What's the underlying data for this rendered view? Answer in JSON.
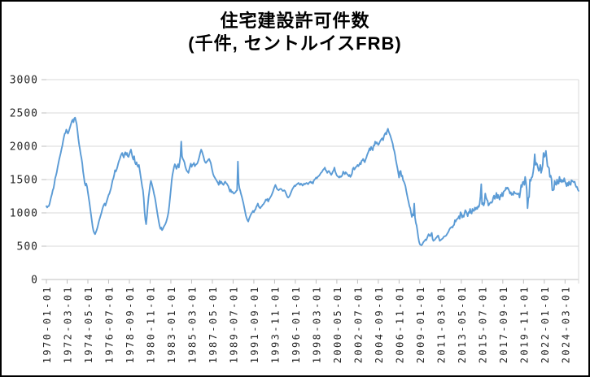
{
  "title": {
    "line1": "住宅建設許可件数",
    "line2": "(千件, セントルイスFRB)"
  },
  "colors": {
    "line": "#5B9BD5",
    "gridline": "#D9D9D9",
    "axis": "#BFBFBF",
    "plot_border": "#D9D9D9",
    "text": "#262626",
    "title_text": "#000000",
    "background": "#FFFFFF",
    "frame_border": "#000000"
  },
  "chart_data": {
    "type": "line",
    "title": "住宅建設許可件数 (千件, セントルイスFRB)",
    "series_name": "住宅建設許可件数",
    "unit": "千件",
    "source": "セントルイスFRB",
    "frequency": "monthly",
    "start": "1970-01",
    "end": "2025-08",
    "xlabel": "",
    "ylabel": "",
    "ylim": [
      0,
      3000
    ],
    "grid": true,
    "legend": false,
    "y_ticks": [
      0,
      500,
      1000,
      1500,
      2000,
      2500,
      3000
    ],
    "x_tick_interval_months": 26,
    "x_tick_labels": [
      "1970-01-01",
      "1972-03-01",
      "1974-05-01",
      "1976-07-01",
      "1978-09-01",
      "1980-11-01",
      "1983-01-01",
      "1985-03-01",
      "1987-05-01",
      "1989-07-01",
      "1991-09-01",
      "1993-11-01",
      "1996-01-01",
      "1998-03-01",
      "2000-05-01",
      "2002-07-01",
      "2004-09-01",
      "2006-11-01",
      "2009-01-01",
      "2011-03-01",
      "2013-05-01",
      "2015-07-01",
      "2017-09-01",
      "2019-11-01",
      "2022-01-01",
      "2024-03-01"
    ],
    "values": [
      1100,
      1081,
      1099,
      1102,
      1135,
      1190,
      1240,
      1282,
      1340,
      1370,
      1440,
      1520,
      1561,
      1610,
      1680,
      1740,
      1800,
      1850,
      1900,
      1960,
      2010,
      2080,
      2140,
      2190,
      2200,
      2250,
      2220,
      2190,
      2220,
      2260,
      2300,
      2340,
      2380,
      2400,
      2360,
      2419,
      2430,
      2380,
      2330,
      2230,
      2120,
      2030,
      1960,
      1880,
      1820,
      1740,
      1620,
      1540,
      1450,
      1410,
      1440,
      1390,
      1310,
      1230,
      1150,
      1060,
      970,
      880,
      790,
      730,
      700,
      680,
      710,
      740,
      780,
      830,
      880,
      920,
      960,
      1000,
      1050,
      1090,
      1120,
      1140,
      1110,
      1150,
      1190,
      1230,
      1270,
      1290,
      1330,
      1370,
      1430,
      1490,
      1520,
      1570,
      1640,
      1620,
      1650,
      1690,
      1740,
      1780,
      1810,
      1850,
      1880,
      1900,
      1860,
      1830,
      1890,
      1910,
      1870,
      1900,
      1850,
      1840,
      1880,
      1920,
      1950,
      1890,
      1830,
      1800,
      1850,
      1760,
      1730,
      1760,
      1710,
      1690,
      1720,
      1640,
      1560,
      1480,
      1400,
      1340,
      1220,
      1030,
      900,
      830,
      950,
      1100,
      1230,
      1320,
      1420,
      1480,
      1440,
      1390,
      1340,
      1280,
      1230,
      1160,
      1080,
      1000,
      930,
      860,
      800,
      760,
      780,
      740,
      760,
      790,
      810,
      830,
      860,
      900,
      950,
      1010,
      1110,
      1230,
      1350,
      1480,
      1570,
      1630,
      1690,
      1730,
      1700,
      1660,
      1700,
      1730,
      1680,
      1760,
      1850,
      2070,
      1850,
      1810,
      1790,
      1760,
      1700,
      1660,
      1630,
      1620,
      1600,
      1650,
      1700,
      1740,
      1690,
      1720,
      1730,
      1750,
      1700,
      1720,
      1730,
      1740,
      1770,
      1810,
      1860,
      1910,
      1950,
      1920,
      1880,
      1840,
      1790,
      1760,
      1750,
      1770,
      1780,
      1800,
      1810,
      1780,
      1750,
      1690,
      1630,
      1580,
      1550,
      1530,
      1510,
      1490,
      1470,
      1450,
      1420,
      1480,
      1440,
      1470,
      1450,
      1430,
      1420,
      1450,
      1470,
      1450,
      1440,
      1420,
      1400,
      1360,
      1320,
      1350,
      1310,
      1320,
      1300,
      1290,
      1300,
      1310,
      1330,
      1340,
      1770,
      1450,
      1370,
      1330,
      1280,
      1240,
      1190,
      1140,
      1080,
      1020,
      960,
      920,
      890,
      870,
      910,
      940,
      970,
      990,
      1010,
      1030,
      1010,
      1040,
      1050,
      1090,
      1110,
      1140,
      1100,
      1080,
      1070,
      1090,
      1100,
      1120,
      1130,
      1150,
      1170,
      1200,
      1190,
      1210,
      1170,
      1200,
      1220,
      1240,
      1260,
      1290,
      1320,
      1360,
      1390,
      1420,
      1390,
      1360,
      1350,
      1340,
      1350,
      1360,
      1360,
      1350,
      1330,
      1330,
      1340,
      1330,
      1300,
      1270,
      1240,
      1230,
      1240,
      1260,
      1290,
      1320,
      1350,
      1370,
      1390,
      1410,
      1400,
      1420,
      1430,
      1440,
      1450,
      1430,
      1420,
      1440,
      1430,
      1410,
      1420,
      1440,
      1430,
      1440,
      1450,
      1440,
      1430,
      1450,
      1460,
      1470,
      1450,
      1460,
      1440,
      1480,
      1500,
      1510,
      1530,
      1520,
      1540,
      1550,
      1560,
      1580,
      1600,
      1610,
      1630,
      1650,
      1660,
      1680,
      1640,
      1630,
      1600,
      1620,
      1630,
      1610,
      1590,
      1570,
      1590,
      1620,
      1640,
      1680,
      1620,
      1590,
      1560,
      1550,
      1540,
      1530,
      1550,
      1540,
      1550,
      1570,
      1620,
      1600,
      1580,
      1610,
      1600,
      1580,
      1570,
      1550,
      1570,
      1540,
      1560,
      1590,
      1660,
      1680,
      1650,
      1670,
      1690,
      1700,
      1720,
      1700,
      1720,
      1750,
      1730,
      1780,
      1790,
      1810,
      1780,
      1760,
      1800,
      1830,
      1870,
      1900,
      1930,
      1970,
      1940,
      1990,
      1960,
      1940,
      2010,
      2010,
      2070,
      2040,
      2060,
      2040,
      2020,
      2040,
      2070,
      2090,
      2110,
      2120,
      2090,
      2150,
      2180,
      2200,
      2180,
      2230,
      2263,
      2220,
      2190,
      2160,
      2120,
      2080,
      2040,
      1970,
      1930,
      1870,
      1790,
      1730,
      1670,
      1600,
      1530,
      1620,
      1630,
      1550,
      1560,
      1490,
      1470,
      1440,
      1400,
      1330,
      1270,
      1210,
      1160,
      1100,
      1070,
      1000,
      940,
      980,
      960,
      1140,
      930,
      850,
      810,
      730,
      640,
      570,
      530,
      520,
      513,
      525,
      550,
      570,
      580,
      600,
      590,
      620,
      650,
      680,
      660,
      650,
      680,
      700,
      610,
      580,
      590,
      600,
      620,
      630,
      650,
      660,
      620,
      580,
      590,
      600,
      610,
      620,
      640,
      650,
      650,
      660,
      680,
      700,
      720,
      750,
      770,
      780,
      790,
      780,
      810,
      820,
      890,
      870,
      900,
      910,
      920,
      950,
      910,
      1010,
      990,
      930,
      960,
      940,
      990,
      1040,
      1020,
      990,
      950,
      1010,
      1000,
      1060,
      1000,
      990,
      1060,
      1030,
      1030,
      1080,
      1050,
      1080,
      1060,
      1100,
      1090,
      1140,
      1250,
      1430,
      1130,
      1150,
      1110,
      1150,
      1290,
      1230,
      1200,
      1180,
      1110,
      1130,
      1150,
      1160,
      1150,
      1170,
      1230,
      1260,
      1210,
      1240,
      1300,
      1220,
      1270,
      1230,
      1200,
      1270,
      1250,
      1300,
      1250,
      1320,
      1330,
      1340,
      1380,
      1360,
      1380,
      1360,
      1330,
      1290,
      1310,
      1270,
      1290,
      1270,
      1320,
      1300,
      1290,
      1290,
      1280,
      1290,
      1290,
      1230,
      1320,
      1420,
      1390,
      1460,
      1470,
      1420,
      1540,
      1460,
      1350,
      1070,
      1220,
      1240,
      1500,
      1480,
      1530,
      1540,
      1610,
      1700,
      1880,
      1720,
      1750,
      1730,
      1680,
      1630,
      1650,
      1720,
      1600,
      1650,
      1720,
      1900,
      1840,
      1860,
      1930,
      1820,
      1700,
      1690,
      1670,
      1540,
      1560,
      1510,
      1340,
      1340,
      1350,
      1480,
      1430,
      1420,
      1500,
      1440,
      1440,
      1540,
      1470,
      1500,
      1460,
      1490,
      1470,
      1520,
      1470,
      1440,
      1400,
      1450,
      1410,
      1470,
      1430,
      1420,
      1490,
      1480,
      1470,
      1460,
      1470,
      1420,
      1390,
      1390,
      1350,
      1330
    ]
  }
}
